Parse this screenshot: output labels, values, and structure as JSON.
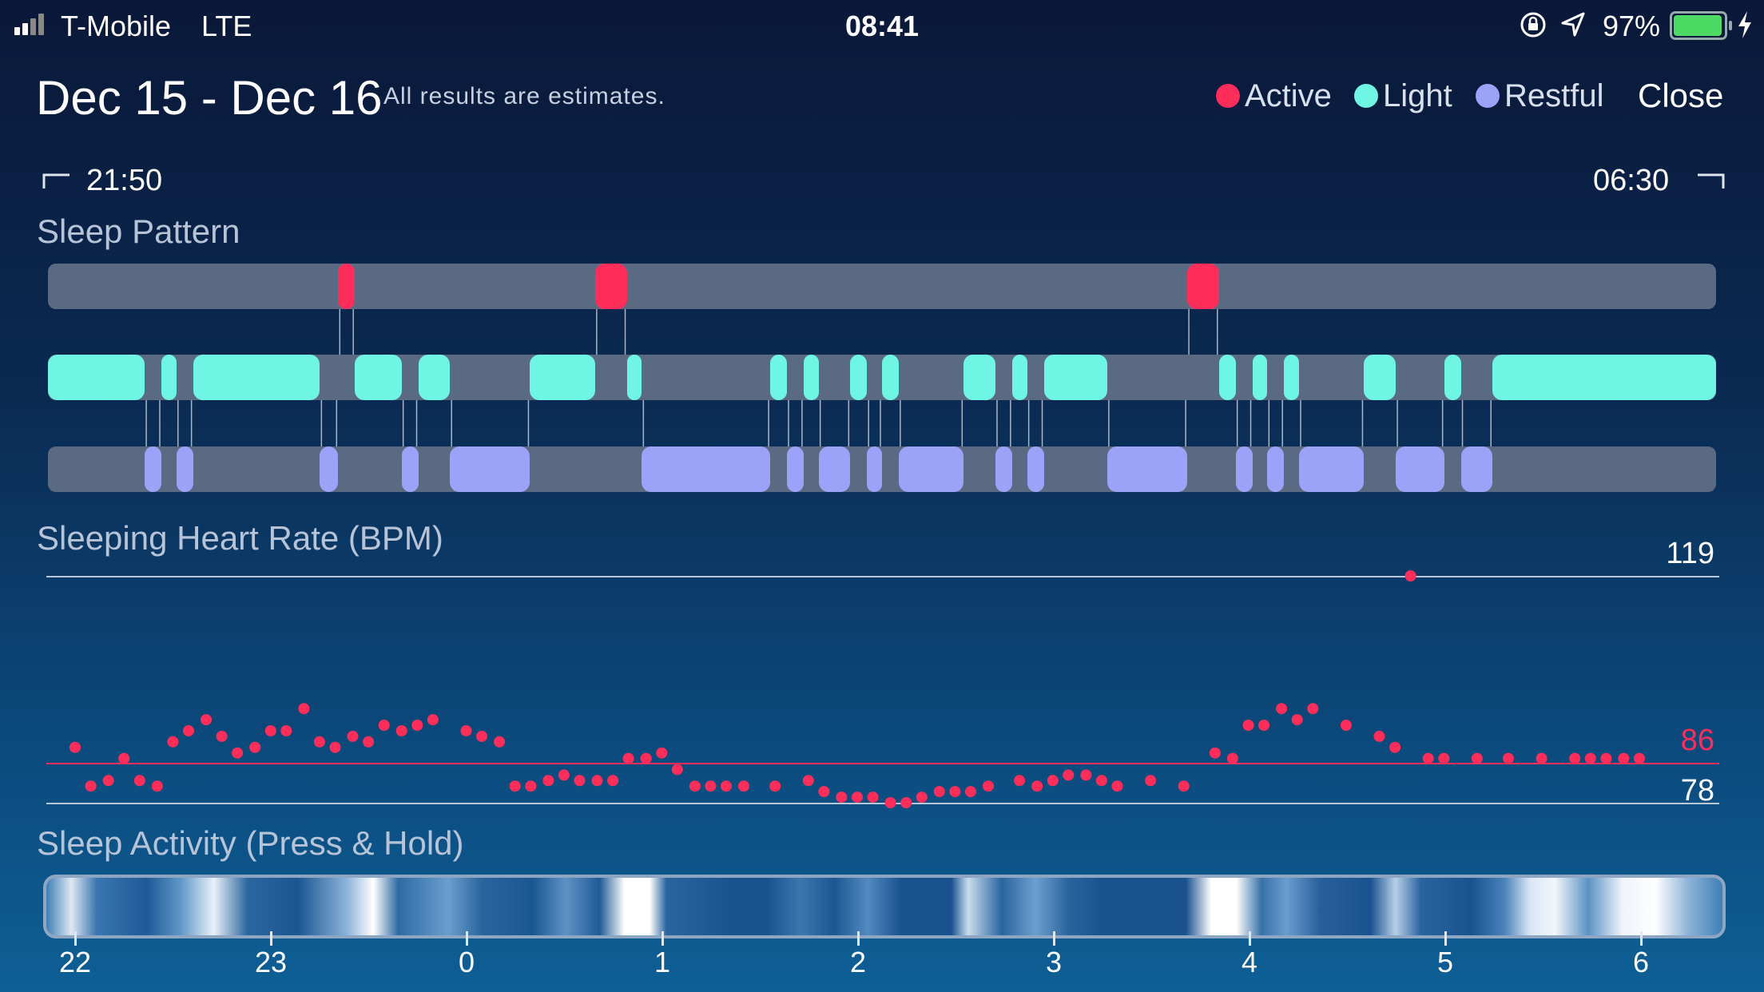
{
  "status_bar": {
    "carrier": "T-Mobile",
    "network": "LTE",
    "time": "08:41",
    "battery": "97%"
  },
  "header": {
    "date_range": "Dec 15 - Dec 16",
    "note": "All results are estimates.",
    "close_label": "Close"
  },
  "legend": [
    {
      "label": "Active",
      "color": "#ff2d5a"
    },
    {
      "label": "Light",
      "color": "#6ff5e4"
    },
    {
      "label": "Restful",
      "color": "#9aa3f7"
    }
  ],
  "time_range": {
    "start": "21:50",
    "end": "06:30"
  },
  "sleep_pattern": {
    "title": "Sleep Pattern",
    "active_segments": [
      [
        0.174,
        0.184
      ],
      [
        0.328,
        0.347
      ],
      [
        0.683,
        0.702
      ]
    ],
    "light_segments": [
      [
        0,
        0.058
      ],
      [
        0.068,
        0.077
      ],
      [
        0.087,
        0.163
      ],
      [
        0.184,
        0.212
      ],
      [
        0.222,
        0.241
      ],
      [
        0.289,
        0.328
      ],
      [
        0.347,
        0.356
      ],
      [
        0.433,
        0.443
      ],
      [
        0.453,
        0.462
      ],
      [
        0.481,
        0.491
      ],
      [
        0.5,
        0.51
      ],
      [
        0.549,
        0.568
      ],
      [
        0.578,
        0.587
      ],
      [
        0.597,
        0.635
      ],
      [
        0.702,
        0.712
      ],
      [
        0.722,
        0.731
      ],
      [
        0.741,
        0.75
      ],
      [
        0.789,
        0.808
      ],
      [
        0.837,
        0.847
      ],
      [
        0.866,
        1.0
      ]
    ],
    "restful_segments": [
      [
        0.058,
        0.068
      ],
      [
        0.077,
        0.087
      ],
      [
        0.163,
        0.174
      ],
      [
        0.212,
        0.222
      ],
      [
        0.241,
        0.289
      ],
      [
        0.356,
        0.433
      ],
      [
        0.443,
        0.453
      ],
      [
        0.462,
        0.481
      ],
      [
        0.491,
        0.5
      ],
      [
        0.51,
        0.549
      ],
      [
        0.568,
        0.578
      ],
      [
        0.587,
        0.597
      ],
      [
        0.635,
        0.683
      ],
      [
        0.712,
        0.722
      ],
      [
        0.731,
        0.741
      ],
      [
        0.75,
        0.789
      ],
      [
        0.808,
        0.837
      ],
      [
        0.847,
        0.866
      ]
    ]
  },
  "heart_rate": {
    "title": "Sleeping Heart Rate (BPM)",
    "max_label": "119",
    "avg_label": "86",
    "min_label": "78",
    "max": 119,
    "avg": 86,
    "min": 78,
    "points_hours": [
      22.0,
      22.08,
      22.17,
      22.25,
      22.33,
      22.42,
      22.5,
      22.58,
      22.67,
      22.75,
      22.83,
      22.92,
      23.0,
      23.08,
      23.17,
      23.25,
      23.33,
      23.42,
      23.5,
      23.58,
      23.67,
      23.75,
      23.83,
      24.0,
      24.08,
      24.17,
      24.25,
      24.33,
      24.42,
      24.5,
      24.58,
      24.67,
      24.75,
      24.83,
      24.92,
      25.0,
      25.08,
      25.17,
      25.25,
      25.33,
      25.42,
      25.58,
      25.75,
      25.83,
      25.92,
      26.0,
      26.08,
      26.17,
      26.25,
      26.33,
      26.42,
      26.5,
      26.58,
      26.67,
      26.83,
      26.92,
      27.0,
      27.08,
      27.17,
      27.25,
      27.33,
      27.5,
      27.67,
      27.83,
      27.92,
      28.0,
      28.08,
      28.17,
      28.25,
      28.33,
      28.5,
      28.67,
      28.75,
      28.83,
      28.92,
      29.0,
      29.17,
      29.33,
      29.5,
      29.67,
      29.75,
      29.83,
      29.92,
      30.0
    ],
    "points_bpm": [
      88,
      81,
      82,
      86,
      82,
      81,
      89,
      91,
      93,
      90,
      87,
      88,
      91,
      91,
      95,
      89,
      88,
      90,
      89,
      92,
      91,
      92,
      93,
      91,
      90,
      89,
      81,
      81,
      82,
      83,
      82,
      82,
      82,
      86,
      86,
      87,
      84,
      81,
      81,
      81,
      81,
      81,
      82,
      80,
      79,
      79,
      79,
      78,
      78,
      79,
      80,
      80,
      80,
      81,
      82,
      81,
      82,
      83,
      83,
      82,
      81,
      82,
      81,
      87,
      86,
      92,
      92,
      95,
      93,
      95,
      92,
      90,
      88,
      119,
      86,
      86,
      86,
      86,
      86,
      86,
      86,
      86,
      86,
      86
    ]
  },
  "sleep_activity": {
    "title": "Sleep Activity (Press & Hold)",
    "ticks": [
      "22",
      "23",
      "0",
      "1",
      "2",
      "3",
      "4",
      "5",
      "6"
    ]
  }
}
